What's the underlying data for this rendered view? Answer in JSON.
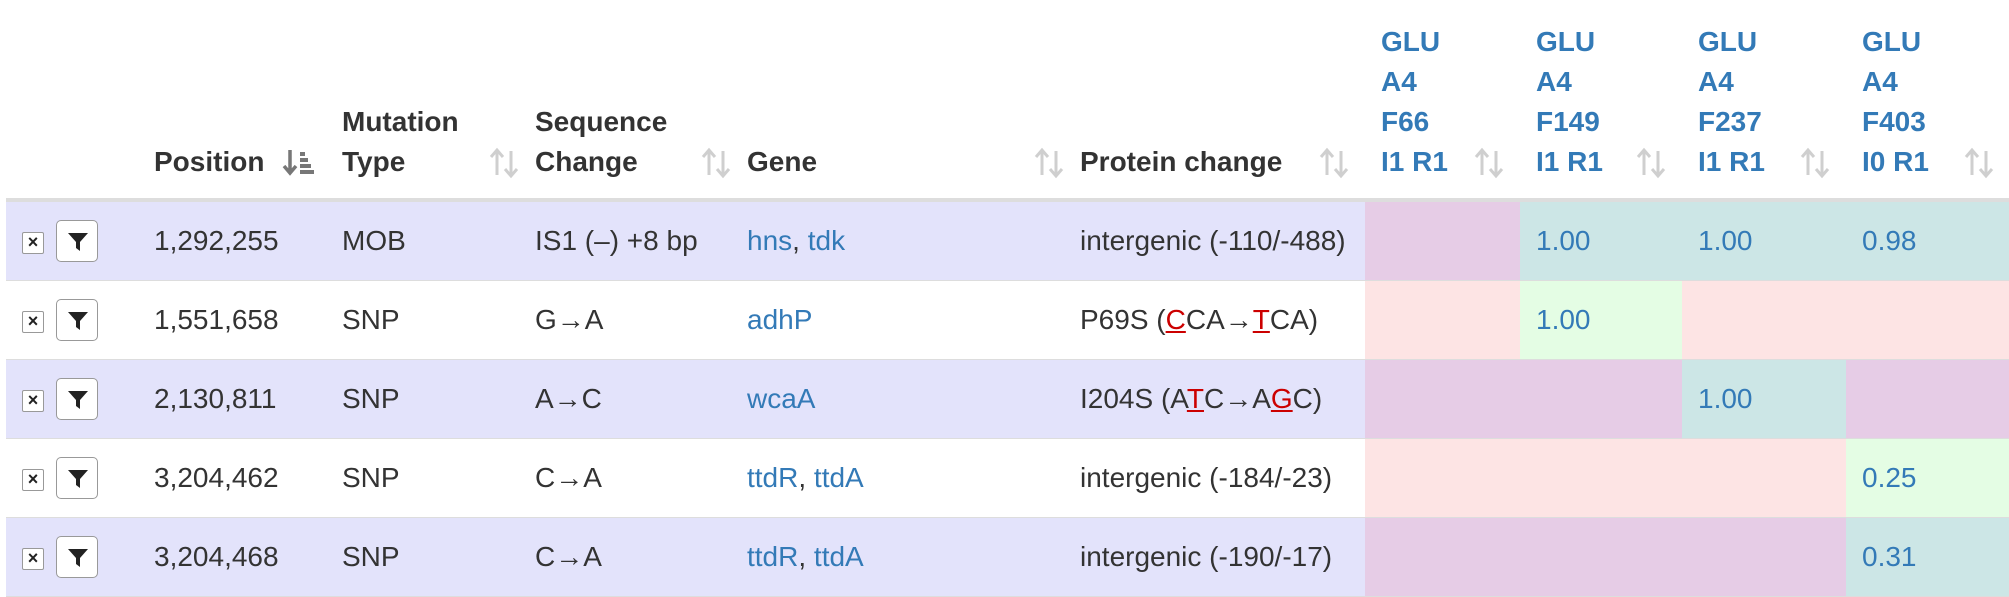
{
  "columns": {
    "position": "Position",
    "mutation_type": [
      "Mutation",
      "Type"
    ],
    "sequence_change": [
      "Sequence",
      "Change"
    ],
    "gene": "Gene",
    "protein_change": "Protein change",
    "samples": [
      [
        "GLU",
        "A4",
        "F66",
        "I1 R1"
      ],
      [
        "GLU",
        "A4",
        "F149",
        "I1 R1"
      ],
      [
        "GLU",
        "A4",
        "F237",
        "I1 R1"
      ],
      [
        "GLU",
        "A4",
        "F403",
        "I0 R1"
      ]
    ]
  },
  "icons": {
    "remove": "close-icon",
    "filter": "filter-icon",
    "sort_active": "sort-amount-down-icon",
    "sort": "sort-icon"
  },
  "colors": {
    "link": "#337ab7",
    "row_odd": "#e3e3fb",
    "absent_odd": "#e6cce6",
    "absent_even": "#fde4e4",
    "present_odd": "#cce6e6",
    "present_even": "#e4fde4",
    "highlight_base": "#cc0000"
  },
  "rows": [
    {
      "position": "1,292,255",
      "type": "MOB",
      "change": "IS1 (–) +8 bp",
      "genes": [
        "hns",
        "tdk"
      ],
      "protein": "intergenic (-110/-488)",
      "frequencies": [
        null,
        "1.00",
        "1.00",
        "0.98"
      ]
    },
    {
      "position": "1,551,658",
      "type": "SNP",
      "change": "G→A",
      "genes": [
        "adhP"
      ],
      "protein": {
        "prefix": "P69S (",
        "c1": "C",
        "m1": "CA→",
        "c2": "T",
        "suffix": "CA)"
      },
      "frequencies": [
        null,
        "1.00",
        null,
        null
      ]
    },
    {
      "position": "2,130,811",
      "type": "SNP",
      "change": "A→C",
      "genes": [
        "wcaA"
      ],
      "protein": {
        "prefix": "I204S (A",
        "c1": "T",
        "m1": "C→A",
        "c2": "G",
        "suffix": "C)"
      },
      "frequencies": [
        null,
        null,
        "1.00",
        null
      ]
    },
    {
      "position": "3,204,462",
      "type": "SNP",
      "change": "C→A",
      "genes": [
        "ttdR",
        "ttdA"
      ],
      "protein": "intergenic (-184/-23)",
      "frequencies": [
        null,
        null,
        null,
        "0.25"
      ]
    },
    {
      "position": "3,204,468",
      "type": "SNP",
      "change": "C→A",
      "genes": [
        "ttdR",
        "ttdA"
      ],
      "protein": "intergenic (-190/-17)",
      "frequencies": [
        null,
        null,
        null,
        "0.31"
      ]
    }
  ]
}
